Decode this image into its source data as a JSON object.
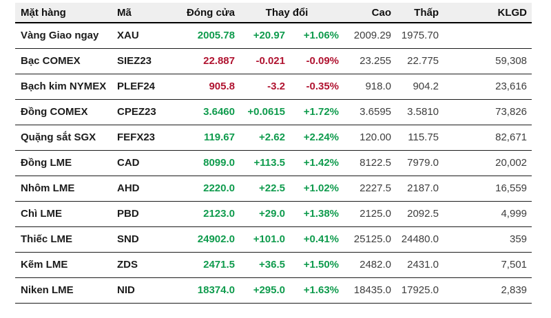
{
  "header": {
    "commodity": "Mặt hàng",
    "code": "Mã",
    "close": "Đóng cửa",
    "change": "Thay đổi",
    "high": "Cao",
    "low": "Thấp",
    "volume": "KLGD"
  },
  "colors": {
    "up": "#0f9b4d",
    "down": "#b01330",
    "header_bg": "#efefef",
    "row_bg": "#ffffff",
    "text": "#1c1c1c",
    "number_text": "#3d3d3d",
    "border": "#1a1a1a"
  },
  "chart_data": {
    "type": "table",
    "columns": [
      "Mặt hàng",
      "Mã",
      "Đóng cửa",
      "Thay đổi",
      "Thay đổi %",
      "Cao",
      "Thấp",
      "KLGD"
    ],
    "rows": [
      {
        "name": "Vàng Giao ngay",
        "code": "XAU",
        "close": "2005.78",
        "change": "+20.97",
        "change_pct": "+1.06%",
        "high": "2009.29",
        "low": "1975.70",
        "volume": "",
        "direction": "up"
      },
      {
        "name": "Bạc COMEX",
        "code": "SIEZ23",
        "close": "22.887",
        "change": "-0.021",
        "change_pct": "-0.09%",
        "high": "23.255",
        "low": "22.775",
        "volume": "59,308",
        "direction": "down"
      },
      {
        "name": "Bạch kim NYMEX",
        "code": "PLEF24",
        "close": "905.8",
        "change": "-3.2",
        "change_pct": "-0.35%",
        "high": "918.0",
        "low": "904.2",
        "volume": "23,616",
        "direction": "down"
      },
      {
        "name": "Đồng COMEX",
        "code": "CPEZ23",
        "close": "3.6460",
        "change": "+0.0615",
        "change_pct": "+1.72%",
        "high": "3.6595",
        "low": "3.5810",
        "volume": "73,826",
        "direction": "up"
      },
      {
        "name": "Quặng sắt SGX",
        "code": "FEFX23",
        "close": "119.67",
        "change": "+2.62",
        "change_pct": "+2.24%",
        "high": "120.00",
        "low": "115.75",
        "volume": "82,671",
        "direction": "up"
      },
      {
        "name": "Đồng LME",
        "code": "CAD",
        "close": "8099.0",
        "change": "+113.5",
        "change_pct": "+1.42%",
        "high": "8122.5",
        "low": "7979.0",
        "volume": "20,002",
        "direction": "up"
      },
      {
        "name": "Nhôm LME",
        "code": "AHD",
        "close": "2220.0",
        "change": "+22.5",
        "change_pct": "+1.02%",
        "high": "2227.5",
        "low": "2187.0",
        "volume": "16,559",
        "direction": "up"
      },
      {
        "name": "Chì LME",
        "code": "PBD",
        "close": "2123.0",
        "change": "+29.0",
        "change_pct": "+1.38%",
        "high": "2125.0",
        "low": "2092.5",
        "volume": "4,999",
        "direction": "up"
      },
      {
        "name": "Thiếc LME",
        "code": "SND",
        "close": "24902.0",
        "change": "+101.0",
        "change_pct": "+0.41%",
        "high": "25125.0",
        "low": "24480.0",
        "volume": "359",
        "direction": "up"
      },
      {
        "name": "Kẽm LME",
        "code": "ZDS",
        "close": "2471.5",
        "change": "+36.5",
        "change_pct": "+1.50%",
        "high": "2482.0",
        "low": "2431.0",
        "volume": "7,501",
        "direction": "up"
      },
      {
        "name": "Niken LME",
        "code": "NID",
        "close": "18374.0",
        "change": "+295.0",
        "change_pct": "+1.63%",
        "high": "18435.0",
        "low": "17925.0",
        "volume": "2,839",
        "direction": "up"
      }
    ]
  }
}
